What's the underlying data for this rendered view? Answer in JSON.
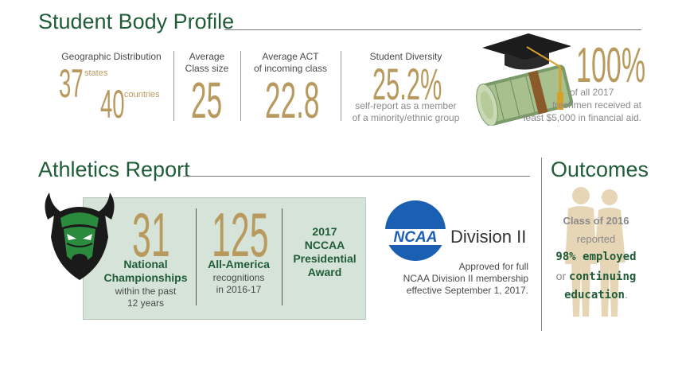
{
  "student_body": {
    "title": "Student Body Profile",
    "geo": {
      "label": "Geographic Distribution",
      "states_value": "37",
      "states_label": "states",
      "countries_value": "40",
      "countries_label": "countries"
    },
    "class_size": {
      "label_line1": "Average",
      "label_line2": "Class size",
      "value": "25"
    },
    "act": {
      "label_line1": "Average ACT",
      "label_line2": "of incoming class",
      "value": "22.8"
    },
    "diversity": {
      "label": "Student Diversity",
      "value": "25.2%",
      "note_line1": "self-report as a member",
      "note_line2": "of a minority/ethnic group"
    },
    "aid": {
      "value": "100%",
      "note_line1": "of all 2017",
      "note_line2": "freshmen received at",
      "note_line3": "least $5,000 in financial aid."
    }
  },
  "athletics": {
    "title": "Athletics Report",
    "championships": {
      "value": "31",
      "label_line1": "National",
      "label_line2": "Championships",
      "sub_line1": "within the past",
      "sub_line2": "12 years"
    },
    "all_america": {
      "value": "125",
      "label": "All-America",
      "sub_line1": "recognitions",
      "sub_line2": "in 2016-17"
    },
    "award": {
      "line1": "2017",
      "line2": "NCCAA",
      "line3": "Presidential",
      "line4": "Award"
    },
    "ncaa": {
      "logo_text": "NCAA",
      "division": "Division II",
      "note_line1": "Approved for full",
      "note_line2": "NCAA Division II membership",
      "note_line3": "effective September 1, 2017."
    }
  },
  "outcomes": {
    "title": "Outcomes",
    "line1": "Class of 2016",
    "line2": "reported",
    "line3": "98% employed",
    "line4_pre": "or",
    "line4_bold": "continuing",
    "line5_bold": "education",
    "line5_post": "."
  },
  "colors": {
    "green": "#1f5c37",
    "gold": "#b99a5e",
    "box": "#d6e3d9",
    "ncaa_blue": "#1b5fb3"
  }
}
